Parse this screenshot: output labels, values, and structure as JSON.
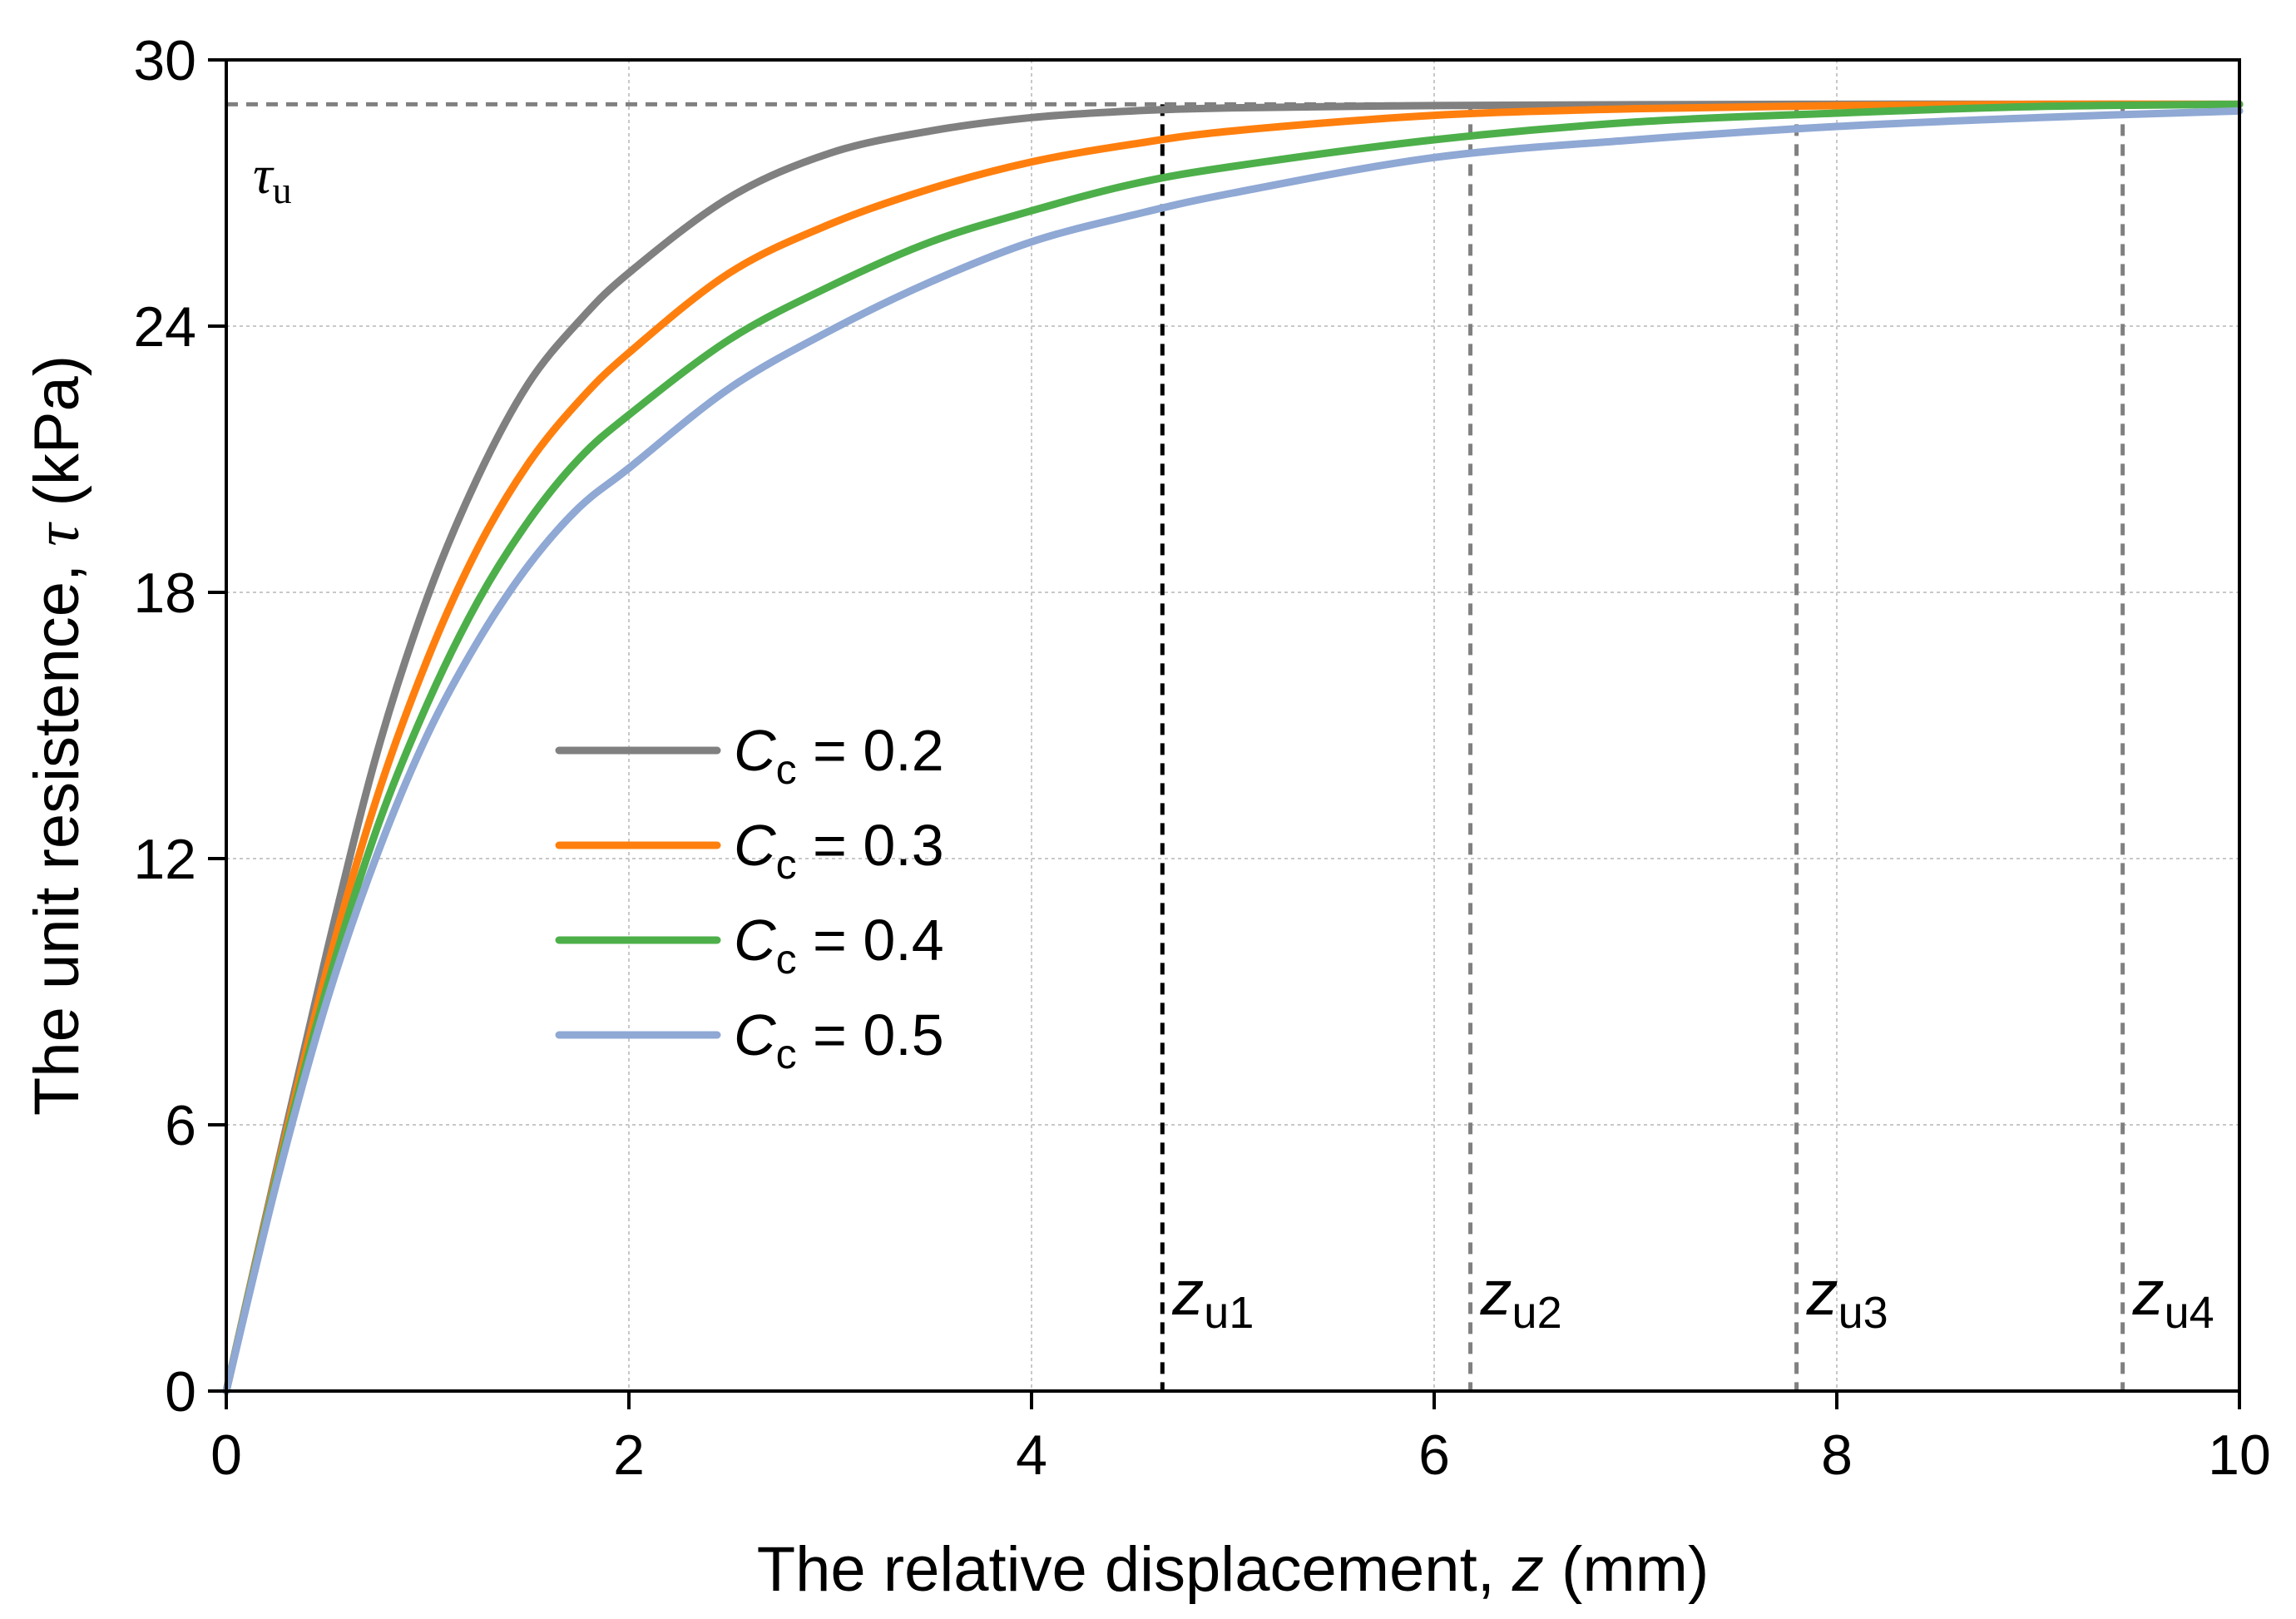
{
  "chart_data": {
    "type": "line",
    "title": "",
    "xlabel": {
      "prefix": "The relative displacement, ",
      "symbol": "z",
      "suffix": " (mm)"
    },
    "ylabel": {
      "prefix": "The unit resistence, ",
      "symbol": "τ",
      "suffix": " (kPa)"
    },
    "xlim": [
      0,
      10
    ],
    "ylim": [
      0,
      30
    ],
    "xticks": [
      0,
      2,
      4,
      6,
      8,
      10
    ],
    "yticks": [
      0,
      6,
      12,
      18,
      24,
      30
    ],
    "grid": true,
    "legend_position": "center-left",
    "tau_u": 29.0,
    "tau_u_label": {
      "symbol": "τ",
      "sub": "u"
    },
    "series": [
      {
        "name": "C",
        "name_sub": "c",
        "name_value": " = 0.2",
        "color": "#808080",
        "x": [
          0,
          0.25,
          0.5,
          0.75,
          1,
          1.25,
          1.5,
          1.75,
          2,
          2.5,
          3,
          3.5,
          4,
          4.5,
          5,
          6,
          7,
          8,
          9,
          10
        ],
        "y": [
          0,
          5.0,
          9.9,
          14.4,
          17.9,
          20.6,
          22.7,
          24.1,
          25.2,
          26.9,
          27.9,
          28.4,
          28.7,
          28.85,
          28.92,
          28.97,
          28.99,
          29.0,
          29.0,
          29.0
        ]
      },
      {
        "name": "C",
        "name_sub": "c",
        "name_value": " = 0.3",
        "color": "#ff7f0e",
        "x": [
          0,
          0.25,
          0.5,
          0.75,
          1,
          1.25,
          1.5,
          1.75,
          2,
          2.5,
          3,
          3.5,
          4,
          4.5,
          5,
          6,
          7,
          8,
          9,
          10
        ],
        "y": [
          0,
          4.9,
          9.5,
          13.4,
          16.5,
          19.0,
          20.9,
          22.3,
          23.4,
          25.2,
          26.3,
          27.1,
          27.7,
          28.1,
          28.4,
          28.75,
          28.9,
          28.97,
          29.0,
          29.0
        ]
      },
      {
        "name": "C",
        "name_sub": "c",
        "name_value": " = 0.4",
        "color": "#4daf4a",
        "x": [
          0,
          0.25,
          0.5,
          0.75,
          1,
          1.25,
          1.5,
          1.75,
          2,
          2.5,
          3,
          3.5,
          4,
          4.5,
          5,
          6,
          7,
          8,
          9,
          10
        ],
        "y": [
          0,
          4.8,
          9.1,
          12.7,
          15.5,
          17.8,
          19.6,
          21.0,
          22.0,
          23.7,
          24.9,
          25.9,
          26.6,
          27.2,
          27.6,
          28.2,
          28.6,
          28.8,
          28.95,
          29.0
        ]
      },
      {
        "name": "C",
        "name_sub": "c",
        "name_value": " = 0.5",
        "color": "#8fa8d4",
        "x": [
          0,
          0.25,
          0.5,
          0.75,
          1,
          1.25,
          1.5,
          1.75,
          2,
          2.5,
          3,
          3.5,
          4,
          4.5,
          5,
          6,
          7,
          8,
          9,
          10
        ],
        "y": [
          0,
          4.7,
          8.8,
          12.1,
          14.8,
          16.9,
          18.6,
          19.9,
          20.8,
          22.6,
          23.9,
          25.0,
          25.9,
          26.5,
          27.0,
          27.8,
          28.2,
          28.5,
          28.7,
          28.85
        ]
      }
    ],
    "markers": [
      {
        "x": 4.65,
        "label": "z",
        "sub": "u1",
        "color": "#000000"
      },
      {
        "x": 6.18,
        "label": "z",
        "sub": "u2",
        "color": "#808080"
      },
      {
        "x": 7.8,
        "label": "z",
        "sub": "u3",
        "color": "#808080"
      },
      {
        "x": 9.42,
        "label": "z",
        "sub": "u4",
        "color": "#808080"
      }
    ]
  }
}
